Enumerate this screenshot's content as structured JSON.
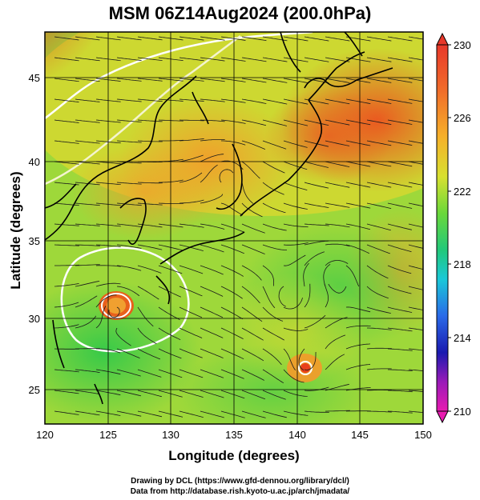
{
  "title": "MSM 06Z14Aug2024 (200.0hPa)",
  "xlabel": "Longitude (degrees)",
  "ylabel": "Latitude  (degrees)",
  "x_ticks": [
    "120",
    "125",
    "130",
    "135",
    "140",
    "145",
    "150"
  ],
  "y_ticks": [
    "25",
    "30",
    "35",
    "40",
    "45"
  ],
  "colorbar": {
    "ticks": [
      "230",
      "226",
      "222",
      "218",
      "214",
      "210"
    ]
  },
  "credits": {
    "line1": "Drawing by DCL (https://www.gfd-dennou.org/library/dcl/)",
    "line2": "Data from http://database.rish.kyoto-u.ac.jp/arch/jmadata/"
  },
  "colors": {
    "warm": "#e8481c",
    "mid": "#e0e030",
    "cool": "#2cc84a"
  }
}
